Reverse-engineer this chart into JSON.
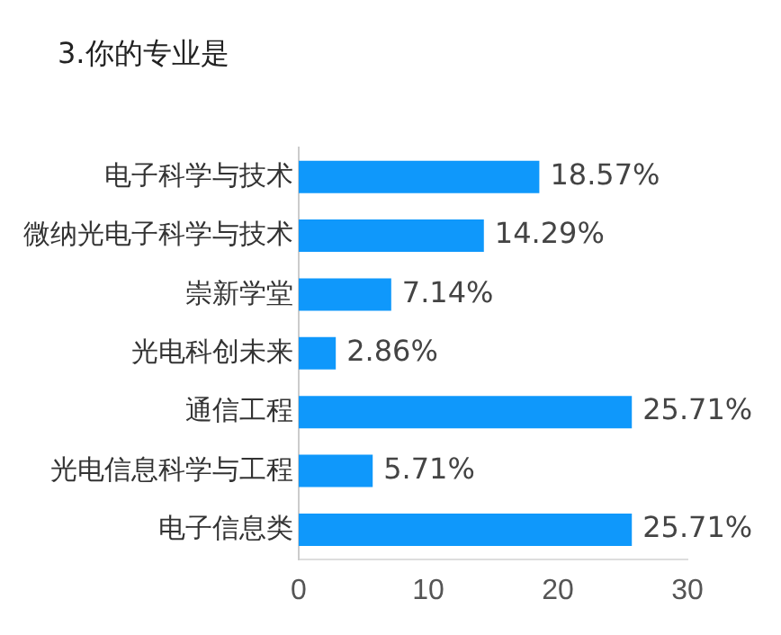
{
  "chart_data": {
    "type": "bar",
    "title": "3.你的专业是",
    "orientation": "horizontal",
    "categories": [
      "电子科学与技术",
      "微纳光电子科学与技术",
      "崇新学堂",
      "光电科创未来",
      "通信工程",
      "光电信息科学与工程",
      "电子信息类"
    ],
    "values": [
      18.57,
      14.29,
      7.14,
      2.86,
      25.71,
      5.71,
      25.71
    ],
    "value_labels": [
      "18.57%",
      "14.29%",
      "7.14%",
      "2.86%",
      "25.71%",
      "5.71%",
      "25.71%"
    ],
    "color": "#0f98fb",
    "xlim": [
      0,
      30
    ],
    "xticks": [
      0,
      10,
      20,
      30
    ],
    "grid": false,
    "legend": false
  }
}
